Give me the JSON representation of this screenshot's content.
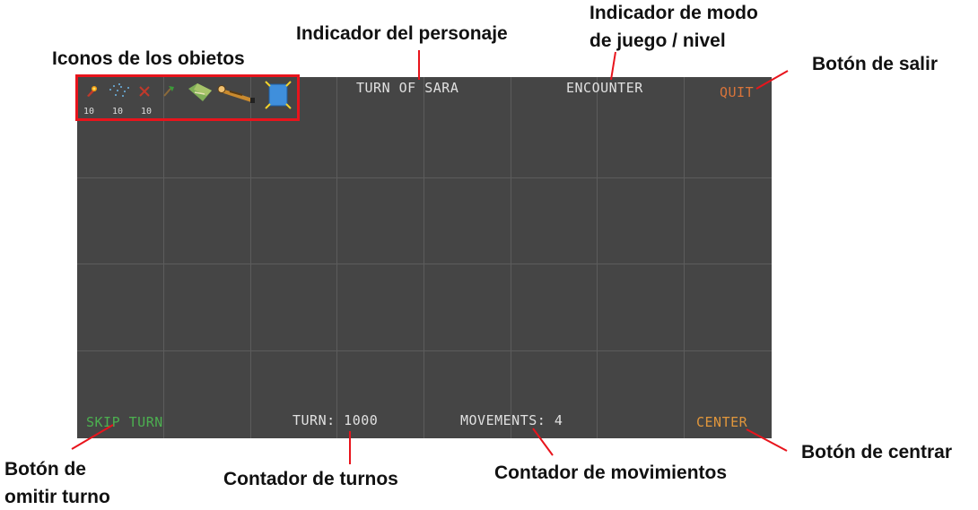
{
  "annotations": {
    "item_icons": "Iconos de los obietos",
    "character_indicator": "Indicador del personaje",
    "mode_indicator_line1": "Indicador de modo",
    "mode_indicator_line2": "de juego / nivel",
    "quit_button": "Botón de salir",
    "skip_button_line1": "Botón de",
    "skip_button_line2": "omitir turno",
    "turn_counter": "Contador de turnos",
    "movement_counter": "Contador de movimientos",
    "center_button": "Botón de centrar"
  },
  "hud": {
    "character": "TURN OF SARA",
    "mode": "ENCOUNTER",
    "quit": "QUIT",
    "skip_turn": "SKIP TURN",
    "turn_counter": "TURN: 1000",
    "movements": "MOVEMENTS: 4",
    "center": "CENTER"
  },
  "items": {
    "counts": [
      "10",
      "10",
      "10"
    ],
    "icons": [
      "fire-rocket-icon",
      "ice-sparkle-icon",
      "red-scissors-icon",
      "green-axe-icon",
      "map-icon",
      "telescope-icon",
      "mirror-icon"
    ]
  },
  "colors": {
    "background": "#454545",
    "highlight": "#e8141c",
    "quit": "#d9743a",
    "skip_turn": "#4caf50",
    "center": "#e0963c"
  }
}
